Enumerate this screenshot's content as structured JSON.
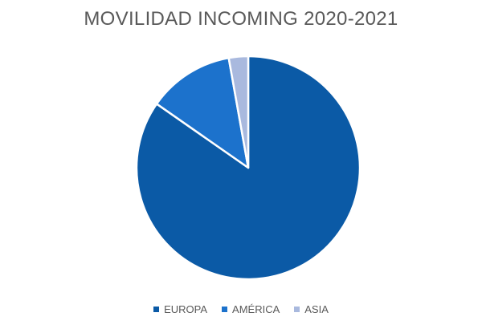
{
  "chart_data": {
    "type": "pie",
    "title": "MOVILIDAD INCOMING 2020-2021",
    "categories": [
      "EUROPA",
      "AMÉRICA",
      "ASIA"
    ],
    "values": [
      84.7,
      12.5,
      2.8
    ],
    "colors": [
      "#0B5AA6",
      "#1C72CC",
      "#A9B9DE"
    ],
    "legend_position": "bottom"
  }
}
